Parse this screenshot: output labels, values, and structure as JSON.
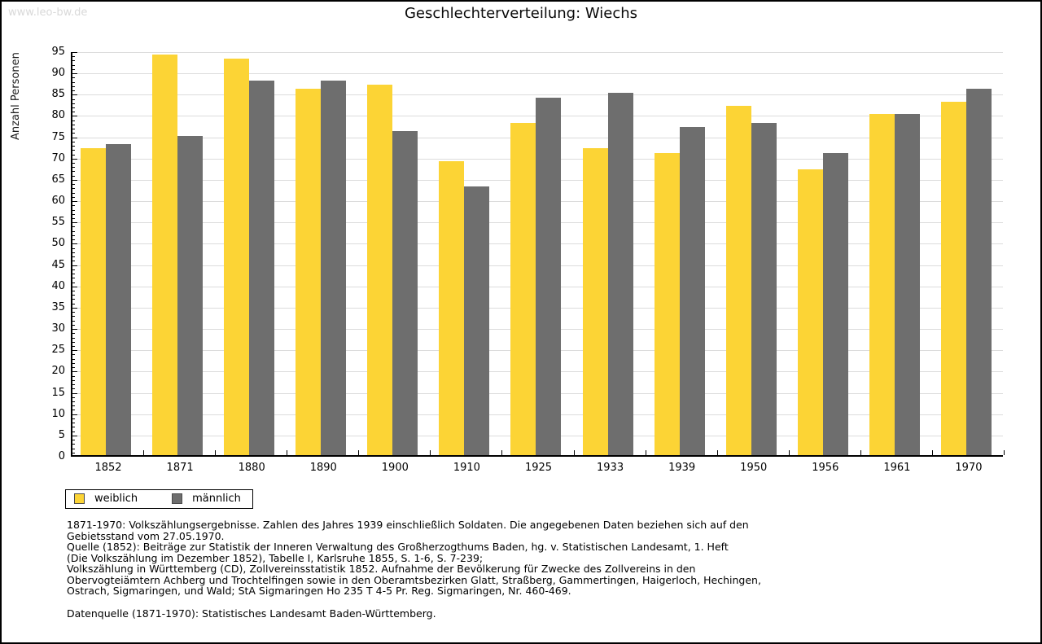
{
  "watermark": "www.leo-bw.de",
  "title": "Geschlechterverteilung: Wiechs",
  "chart_data": {
    "type": "bar",
    "title": "Geschlechterverteilung: Wiechs",
    "xlabel": "",
    "ylabel": "Anzahl Personen",
    "ylim": [
      0,
      95
    ],
    "ytick_step": 5,
    "minor_tick_step": 1,
    "grid": true,
    "legend_position": "bottom-left",
    "categories": [
      "1852",
      "1871",
      "1880",
      "1890",
      "1900",
      "1910",
      "1925",
      "1933",
      "1939",
      "1950",
      "1956",
      "1961",
      "1970"
    ],
    "series": [
      {
        "name": "weiblich",
        "color": "#FCD435",
        "values": [
          72,
          94,
          93,
          86,
          87,
          69,
          78,
          72,
          71,
          82,
          67,
          80,
          83
        ]
      },
      {
        "name": "männlich",
        "color": "#6E6E6E",
        "values": [
          73,
          75,
          88,
          88,
          76,
          63,
          84,
          85,
          77,
          78,
          71,
          80,
          86
        ]
      }
    ]
  },
  "legend": {
    "items": [
      {
        "label": "weiblich",
        "color": "#FCD435"
      },
      {
        "label": "männlich",
        "color": "#6E6E6E"
      }
    ]
  },
  "footer": {
    "lines": [
      "1871-1970: Volkszählungsergebnisse. Zahlen des Jahres 1939 einschließlich Soldaten. Die angegebenen Daten beziehen sich auf den",
      "Gebietsstand vom 27.05.1970.",
      "Quelle (1852): Beiträge zur Statistik der Inneren Verwaltung des Großherzogthums Baden, hg. v. Statistischen Landesamt, 1. Heft",
      "(Die Volkszählung im Dezember 1852), Tabelle I, Karlsruhe 1855, S. 1-6, S. 7-239;",
      "Volkszählung in Württemberg (CD), Zollvereinsstatistik 1852. Aufnahme der Bevölkerung für Zwecke des Zollvereins in den",
      "Obervogteiämtern Achberg und Trochtelfingen sowie in den Oberamtsbezirken Glatt, Straßberg, Gammertingen, Haigerloch, Hechingen,",
      "Ostrach, Sigmaringen, und Wald; StA Sigmaringen Ho 235 T 4-5 Pr. Reg. Sigmaringen, Nr. 460-469."
    ],
    "datasource": "Datenquelle (1871-1970): Statistisches Landesamt Baden-Württemberg."
  },
  "colors": {
    "female_bar": "#FCD435",
    "male_bar": "#6E6E6E",
    "gridline": "#DCDCDC",
    "watermark": "#D9D9D9",
    "axis": "#000000"
  }
}
